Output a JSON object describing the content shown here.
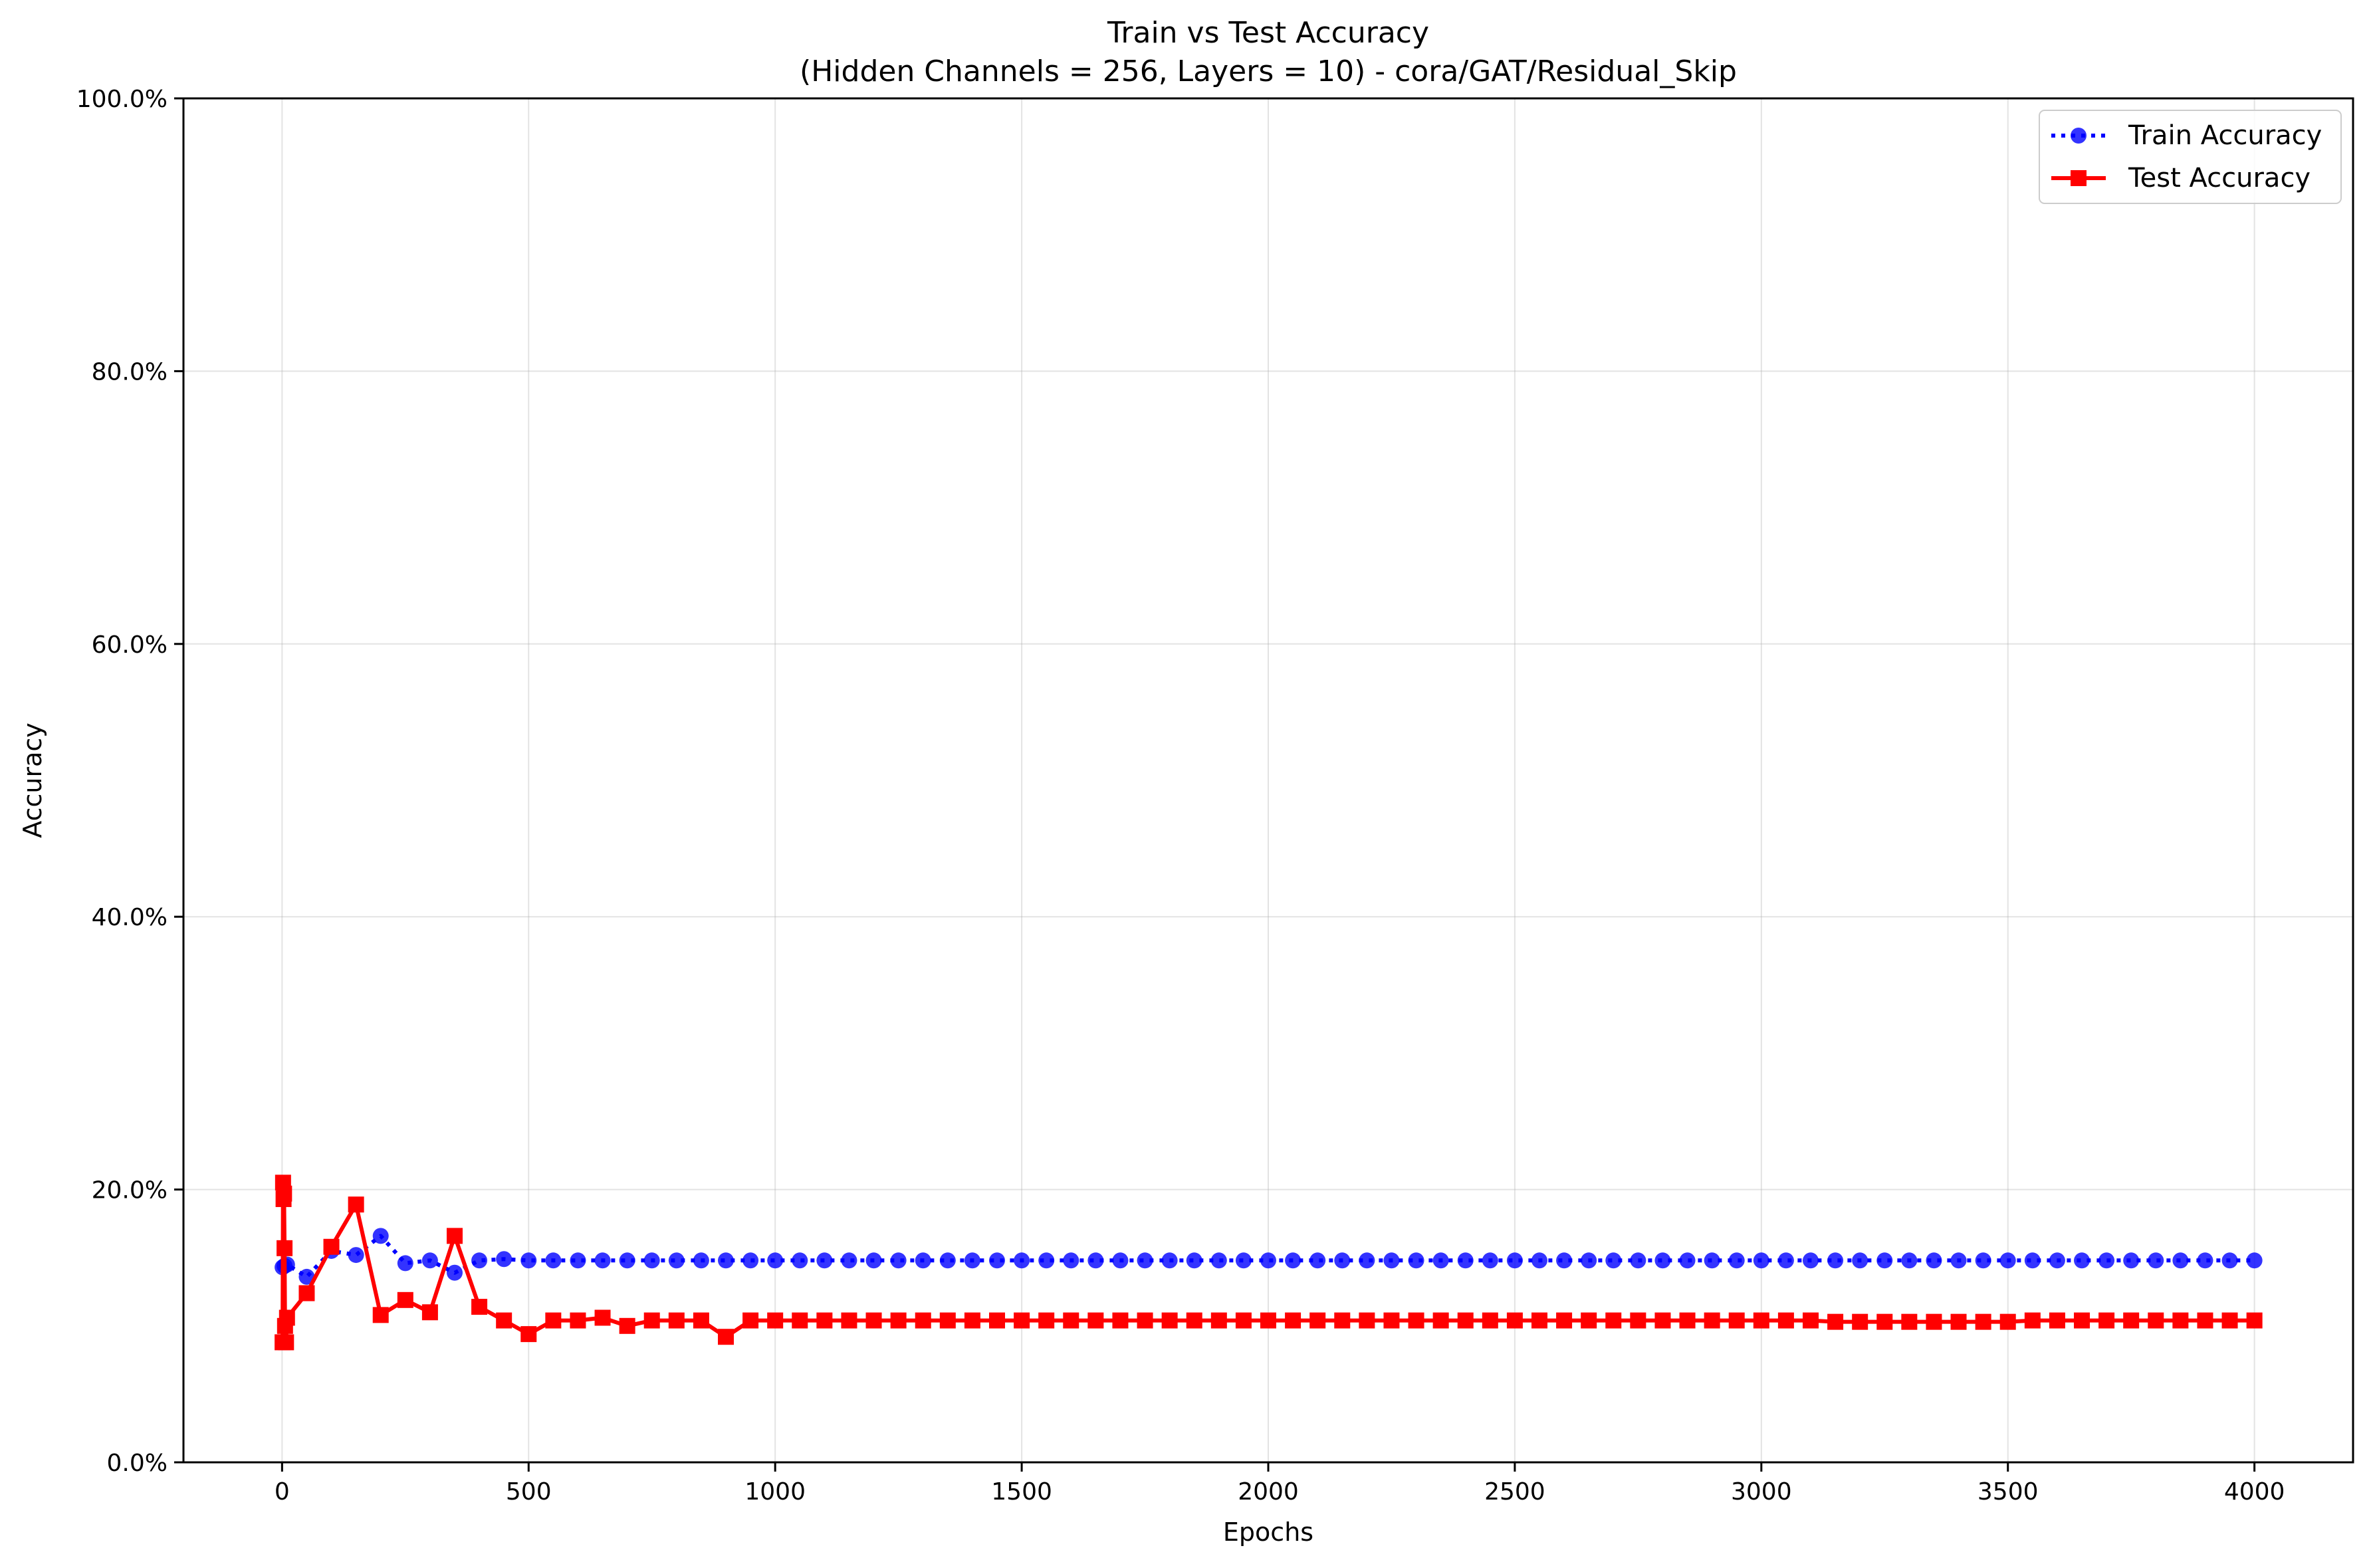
{
  "chart_data": {
    "type": "line",
    "title": "Train vs Test Accuracy",
    "subtitle": "(Hidden Channels = 256, Layers = 10) - cora/GAT/Residual_Skip",
    "xlabel": "Epochs",
    "ylabel": "Accuracy",
    "xlim": [
      -200,
      4200
    ],
    "ylim": [
      0,
      1
    ],
    "xticks": [
      0,
      500,
      1000,
      1500,
      2000,
      2500,
      3000,
      3500,
      4000
    ],
    "xtick_labels": [
      "0",
      "500",
      "1000",
      "1500",
      "2000",
      "2500",
      "3000",
      "3500",
      "4000"
    ],
    "yticks": [
      0,
      0.2,
      0.4,
      0.6,
      0.8,
      1.0
    ],
    "ytick_labels": [
      "0.0%",
      "20.0%",
      "40.0%",
      "60.0%",
      "80.0%",
      "100.0%"
    ],
    "grid": true,
    "legend_position": "top-right",
    "series": [
      {
        "name": "Train Accuracy",
        "color": "#0000ff",
        "linestyle": "dotted",
        "marker": "circle",
        "x": [
          1,
          5,
          10,
          50,
          100,
          150,
          200,
          250,
          300,
          350,
          400,
          450,
          500,
          550,
          600,
          650,
          700,
          750,
          800,
          850,
          900,
          950,
          1000,
          1050,
          1100,
          1150,
          1200,
          1250,
          1300,
          1350,
          1400,
          1450,
          1500,
          1550,
          1600,
          1650,
          1700,
          1750,
          1800,
          1850,
          1900,
          1950,
          2000,
          2050,
          2100,
          2150,
          2200,
          2250,
          2300,
          2350,
          2400,
          2450,
          2500,
          2550,
          2600,
          2650,
          2700,
          2750,
          2800,
          2850,
          2900,
          2950,
          3000,
          3050,
          3100,
          3150,
          3200,
          3250,
          3300,
          3350,
          3400,
          3450,
          3500,
          3550,
          3600,
          3650,
          3700,
          3750,
          3800,
          3850,
          3900,
          3950,
          4000
        ],
        "y": [
          0.143,
          0.144,
          0.145,
          0.136,
          0.155,
          0.152,
          0.166,
          0.146,
          0.148,
          0.139,
          0.148,
          0.149,
          0.148,
          0.148,
          0.148,
          0.148,
          0.148,
          0.148,
          0.148,
          0.148,
          0.148,
          0.148,
          0.148,
          0.148,
          0.148,
          0.148,
          0.148,
          0.148,
          0.148,
          0.148,
          0.148,
          0.148,
          0.148,
          0.148,
          0.148,
          0.148,
          0.148,
          0.148,
          0.148,
          0.148,
          0.148,
          0.148,
          0.148,
          0.148,
          0.148,
          0.148,
          0.148,
          0.148,
          0.148,
          0.148,
          0.148,
          0.148,
          0.148,
          0.148,
          0.148,
          0.148,
          0.148,
          0.148,
          0.148,
          0.148,
          0.148,
          0.148,
          0.148,
          0.148,
          0.148,
          0.148,
          0.148,
          0.148,
          0.148,
          0.148,
          0.148,
          0.148,
          0.148,
          0.148,
          0.148,
          0.148,
          0.148,
          0.148,
          0.148,
          0.148,
          0.148,
          0.148,
          0.148
        ]
      },
      {
        "name": "Test Accuracy",
        "color": "#ff0000",
        "linestyle": "solid",
        "marker": "square",
        "x": [
          1,
          2,
          3,
          4,
          5,
          6,
          8,
          10,
          50,
          100,
          150,
          200,
          250,
          300,
          350,
          400,
          450,
          500,
          550,
          600,
          650,
          700,
          750,
          800,
          850,
          900,
          950,
          1000,
          1050,
          1100,
          1150,
          1200,
          1250,
          1300,
          1350,
          1400,
          1450,
          1500,
          1550,
          1600,
          1650,
          1700,
          1750,
          1800,
          1850,
          1900,
          1950,
          2000,
          2050,
          2100,
          2150,
          2200,
          2250,
          2300,
          2350,
          2400,
          2450,
          2500,
          2550,
          2600,
          2650,
          2700,
          2750,
          2800,
          2850,
          2900,
          2950,
          3000,
          3050,
          3100,
          3150,
          3200,
          3250,
          3300,
          3350,
          3400,
          3450,
          3500,
          3550,
          3600,
          3650,
          3700,
          3750,
          3800,
          3850,
          3900,
          3950,
          4000
        ],
        "y": [
          0.088,
          0.205,
          0.193,
          0.197,
          0.157,
          0.1,
          0.088,
          0.106,
          0.124,
          0.158,
          0.189,
          0.108,
          0.119,
          0.11,
          0.166,
          0.114,
          0.104,
          0.094,
          0.104,
          0.104,
          0.106,
          0.1,
          0.104,
          0.104,
          0.104,
          0.092,
          0.104,
          0.104,
          0.104,
          0.104,
          0.104,
          0.104,
          0.104,
          0.104,
          0.104,
          0.104,
          0.104,
          0.104,
          0.104,
          0.104,
          0.104,
          0.104,
          0.104,
          0.104,
          0.104,
          0.104,
          0.104,
          0.104,
          0.104,
          0.104,
          0.104,
          0.104,
          0.104,
          0.104,
          0.104,
          0.104,
          0.104,
          0.104,
          0.104,
          0.104,
          0.104,
          0.104,
          0.104,
          0.104,
          0.104,
          0.104,
          0.104,
          0.104,
          0.104,
          0.104,
          0.103,
          0.103,
          0.103,
          0.103,
          0.103,
          0.103,
          0.103,
          0.103,
          0.104,
          0.104,
          0.104,
          0.104,
          0.104,
          0.104,
          0.104,
          0.104,
          0.104,
          0.104
        ]
      }
    ]
  }
}
